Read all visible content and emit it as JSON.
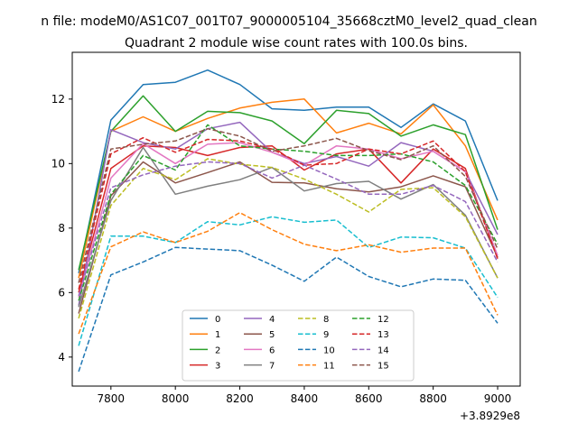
{
  "figure": {
    "suptitle": "n file: modeM0/AS1C07_001T07_9000005104_35668cztM0_level2_quad_clean",
    "title": "Quadrant 2 module wise count rates with 100.0s bins."
  },
  "chart_data": {
    "type": "line",
    "title": "Quadrant 2 module wise count rates with 100.0s bins.",
    "xlabel": "",
    "ylabel": "",
    "x_offset_label": "+3.8929e8",
    "xlim": [
      7680,
      9070
    ],
    "ylim": [
      3.1,
      13.45
    ],
    "xticks": [
      7800,
      8000,
      8200,
      8400,
      8600,
      8800,
      9000
    ],
    "yticks": [
      4,
      6,
      8,
      10,
      12
    ],
    "grid": false,
    "legend": {
      "location": "lower center",
      "columns": 4
    },
    "x": [
      7700,
      7800,
      7900,
      8000,
      8100,
      8200,
      8300,
      8400,
      8500,
      8600,
      8700,
      8800,
      8900,
      9000
    ],
    "series": [
      {
        "name": "0",
        "color": "#1f77b4",
        "dash": "solid",
        "values": [
          6.6,
          11.35,
          12.45,
          12.52,
          12.9,
          12.45,
          11.7,
          11.65,
          11.75,
          11.75,
          11.12,
          11.85,
          11.32,
          8.85
        ]
      },
      {
        "name": "1",
        "color": "#ff7f0e",
        "dash": "solid",
        "values": [
          6.45,
          11.0,
          11.45,
          11.0,
          11.4,
          11.72,
          11.9,
          12.0,
          10.95,
          11.25,
          10.92,
          11.82,
          10.55,
          8.25
        ]
      },
      {
        "name": "2",
        "color": "#2ca02c",
        "dash": "solid",
        "values": [
          6.7,
          11.0,
          12.1,
          11.0,
          11.62,
          11.58,
          11.32,
          10.62,
          11.65,
          11.55,
          10.85,
          11.2,
          10.9,
          7.95
        ]
      },
      {
        "name": "3",
        "color": "#d62728",
        "dash": "solid",
        "values": [
          6.0,
          9.85,
          10.55,
          10.5,
          10.25,
          10.5,
          10.55,
          9.8,
          10.3,
          10.45,
          9.4,
          10.45,
          9.85,
          7.05
        ]
      },
      {
        "name": "4",
        "color": "#9467bd",
        "dash": "solid",
        "values": [
          5.6,
          11.05,
          10.65,
          10.45,
          11.08,
          11.28,
          10.35,
          10.0,
          10.22,
          9.92,
          10.65,
          10.38,
          9.75,
          7.8
        ]
      },
      {
        "name": "5",
        "color": "#8c564b",
        "dash": "solid",
        "values": [
          5.35,
          9.0,
          10.05,
          9.4,
          9.72,
          10.05,
          9.42,
          9.4,
          9.22,
          9.12,
          9.28,
          9.62,
          9.28,
          7.1
        ]
      },
      {
        "name": "6",
        "color": "#e377c2",
        "dash": "solid",
        "values": [
          5.85,
          9.55,
          10.62,
          10.0,
          10.6,
          10.65,
          10.35,
          9.95,
          10.55,
          10.45,
          10.15,
          10.38,
          9.75,
          7.15
        ]
      },
      {
        "name": "7",
        "color": "#7f7f7f",
        "dash": "solid",
        "values": [
          5.55,
          8.85,
          10.5,
          9.05,
          9.3,
          9.5,
          9.88,
          9.15,
          9.38,
          9.45,
          8.9,
          9.35,
          8.4,
          6.45
        ]
      },
      {
        "name": "8",
        "color": "#bcbd22",
        "dash": "dashed",
        "values": [
          5.2,
          8.7,
          9.85,
          9.5,
          10.15,
          9.98,
          9.88,
          9.52,
          9.05,
          8.5,
          9.2,
          9.25,
          8.35,
          6.45
        ]
      },
      {
        "name": "9",
        "color": "#17becf",
        "dash": "dashed",
        "values": [
          4.35,
          7.75,
          7.75,
          7.55,
          8.2,
          8.1,
          8.35,
          8.18,
          8.25,
          7.4,
          7.72,
          7.7,
          7.38,
          5.85
        ]
      },
      {
        "name": "10",
        "color": "#1f77b4",
        "dash": "dashed",
        "values": [
          3.55,
          6.55,
          6.95,
          7.4,
          7.35,
          7.3,
          6.85,
          6.35,
          7.1,
          6.5,
          6.18,
          6.42,
          6.38,
          5.05
        ]
      },
      {
        "name": "11",
        "color": "#ff7f0e",
        "dash": "dashed",
        "values": [
          4.72,
          7.42,
          7.88,
          7.55,
          7.9,
          8.48,
          7.95,
          7.5,
          7.3,
          7.48,
          7.25,
          7.38,
          7.38,
          5.3
        ]
      },
      {
        "name": "12",
        "color": "#2ca02c",
        "dash": "dashed",
        "values": [
          5.75,
          9.05,
          10.25,
          9.8,
          11.2,
          10.55,
          10.45,
          10.38,
          10.25,
          10.25,
          10.3,
          10.05,
          9.32,
          7.5
        ]
      },
      {
        "name": "13",
        "color": "#d62728",
        "dash": "dashed",
        "values": [
          6.1,
          10.3,
          10.8,
          10.35,
          10.75,
          10.7,
          10.45,
          9.95,
          10.0,
          10.45,
          10.3,
          10.7,
          9.75,
          7.05
        ]
      },
      {
        "name": "14",
        "color": "#9467bd",
        "dash": "dashed",
        "values": [
          5.9,
          9.25,
          9.65,
          9.92,
          10.05,
          10.0,
          9.55,
          9.95,
          9.52,
          9.05,
          9.05,
          9.32,
          8.82,
          6.95
        ]
      },
      {
        "name": "15",
        "color": "#8c564b",
        "dash": "dashed",
        "values": [
          6.3,
          10.45,
          10.6,
          10.7,
          11.08,
          10.85,
          10.38,
          10.55,
          10.78,
          10.4,
          10.12,
          10.55,
          9.6,
          7.35
        ]
      }
    ]
  }
}
